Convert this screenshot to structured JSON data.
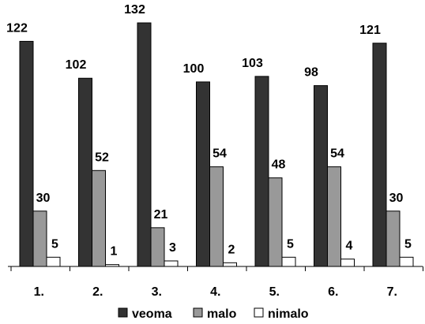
{
  "chart_data": {
    "type": "bar",
    "categories": [
      "1.",
      "2.",
      "3.",
      "4.",
      "5.",
      "6.",
      "7."
    ],
    "series": [
      {
        "name": "veoma",
        "values": [
          122,
          102,
          132,
          100,
          103,
          98,
          121
        ],
        "color": "#333333"
      },
      {
        "name": "malo",
        "values": [
          30,
          52,
          21,
          54,
          48,
          54,
          30
        ],
        "color": "#999999"
      },
      {
        "name": "nimalo",
        "values": [
          5,
          1,
          3,
          2,
          5,
          4,
          5
        ],
        "color": "#ffffff"
      }
    ],
    "ylim": [
      0,
      135
    ],
    "grid": false,
    "legend_position": "bottom"
  }
}
